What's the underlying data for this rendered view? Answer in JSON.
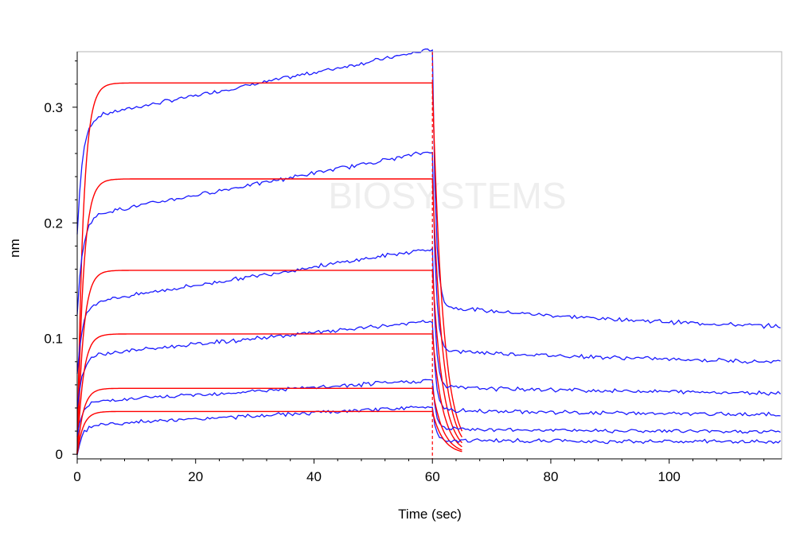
{
  "chart_data": {
    "type": "line",
    "xlabel": "Time (sec)",
    "ylabel": "nm",
    "xlim": [
      0,
      119
    ],
    "ylim": [
      -0.004,
      0.348
    ],
    "x_ticks": [
      0,
      20,
      40,
      60,
      80,
      100
    ],
    "y_ticks": [
      0,
      0.1,
      0.2,
      0.3
    ],
    "y_tick_labels": [
      "0",
      "0.1",
      "0.2",
      "0.3"
    ],
    "grid": false,
    "watermark": "BIOSYSTEMS",
    "association_end": 60,
    "dissociation_fit_end": 65,
    "colors": {
      "measured": "#1a1aff",
      "fit": "#ff0000",
      "marker": "#ff0000"
    },
    "series": [
      {
        "start": 0.19,
        "jump": 0.29,
        "end_assoc": 0.35,
        "dissoc_drop": 0.128,
        "end": 0.1,
        "fit_plateau": 0.321
      },
      {
        "start": 0.12,
        "jump": 0.205,
        "end_assoc": 0.262,
        "dissoc_drop": 0.09,
        "end": 0.074,
        "fit_plateau": 0.238
      },
      {
        "start": 0.07,
        "jump": 0.13,
        "end_assoc": 0.178,
        "dissoc_drop": 0.058,
        "end": 0.05,
        "fit_plateau": 0.159
      },
      {
        "start": 0.04,
        "jump": 0.085,
        "end_assoc": 0.115,
        "dissoc_drop": 0.038,
        "end": 0.032,
        "fit_plateau": 0.104
      },
      {
        "start": 0.015,
        "jump": 0.045,
        "end_assoc": 0.064,
        "dissoc_drop": 0.022,
        "end": 0.018,
        "fit_plateau": 0.057
      },
      {
        "start": 0.0,
        "jump": 0.025,
        "end_assoc": 0.041,
        "dissoc_drop": 0.012,
        "end": 0.01,
        "fit_plateau": 0.037
      }
    ]
  }
}
